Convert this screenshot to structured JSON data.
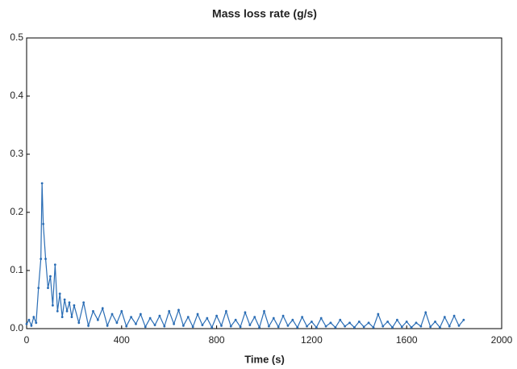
{
  "chart_data": {
    "type": "line",
    "title": "Mass loss rate (g/s)",
    "x_label": "Time (s)",
    "color": "#2a6db5",
    "x": [
      0,
      10,
      20,
      30,
      40,
      50,
      60,
      65,
      70,
      80,
      90,
      100,
      110,
      120,
      130,
      140,
      150,
      160,
      170,
      180,
      190,
      200,
      220,
      240,
      260,
      280,
      300,
      320,
      340,
      360,
      380,
      400,
      420,
      440,
      460,
      480,
      500,
      520,
      540,
      560,
      580,
      600,
      620,
      640,
      660,
      680,
      700,
      720,
      740,
      760,
      780,
      800,
      820,
      840,
      860,
      880,
      900,
      920,
      940,
      960,
      980,
      1000,
      1020,
      1040,
      1060,
      1080,
      1100,
      1120,
      1140,
      1160,
      1180,
      1200,
      1220,
      1240,
      1260,
      1280,
      1300,
      1320,
      1340,
      1360,
      1380,
      1400,
      1420,
      1440,
      1460,
      1480,
      1500,
      1520,
      1540,
      1560,
      1580,
      1600,
      1620,
      1640,
      1660,
      1680,
      1700,
      1720,
      1740,
      1760,
      1780,
      1800,
      1820,
      1840
    ],
    "values": [
      0.008,
      0.015,
      0.005,
      0.02,
      0.01,
      0.07,
      0.12,
      0.25,
      0.18,
      0.12,
      0.07,
      0.09,
      0.04,
      0.11,
      0.03,
      0.06,
      0.02,
      0.05,
      0.03,
      0.045,
      0.02,
      0.04,
      0.01,
      0.045,
      0.005,
      0.03,
      0.015,
      0.035,
      0.005,
      0.025,
      0.01,
      0.03,
      0.004,
      0.02,
      0.008,
      0.025,
      0.003,
      0.018,
      0.006,
      0.022,
      0.004,
      0.03,
      0.008,
      0.032,
      0.005,
      0.02,
      0.003,
      0.025,
      0.006,
      0.018,
      0.002,
      0.022,
      0.005,
      0.03,
      0.004,
      0.015,
      0.003,
      0.028,
      0.006,
      0.02,
      0.002,
      0.03,
      0.004,
      0.018,
      0.003,
      0.022,
      0.005,
      0.015,
      0.002,
      0.02,
      0.004,
      0.012,
      0.002,
      0.018,
      0.004,
      0.01,
      0.002,
      0.015,
      0.004,
      0.01,
      0.002,
      0.012,
      0.003,
      0.01,
      0.002,
      0.025,
      0.004,
      0.012,
      0.002,
      0.015,
      0.003,
      0.012,
      0.002,
      0.01,
      0.004,
      0.028,
      0.003,
      0.012,
      0.002,
      0.02,
      0.004,
      0.022,
      0.005,
      0.015
    ],
    "xlim": [
      0,
      2000
    ],
    "xticks": [
      0,
      400,
      800,
      1200,
      1600,
      2000
    ],
    "ylim": [
      0,
      0.5
    ],
    "yticks": [
      {
        "value": 0,
        "label": "0.0"
      },
      0.1,
      0.2,
      0.3,
      0.4,
      0.5
    ]
  }
}
